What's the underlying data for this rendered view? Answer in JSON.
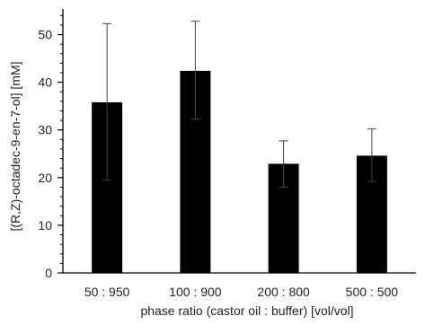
{
  "chart_data": {
    "type": "bar",
    "categories": [
      "50 : 950",
      "100 : 900",
      "200 : 800",
      "500 : 500"
    ],
    "values": [
      35.8,
      42.4,
      22.9,
      24.6
    ],
    "error_upper": [
      52.3,
      52.8,
      27.7,
      30.2
    ],
    "error_lower": [
      19.5,
      32.3,
      18.0,
      19.2
    ],
    "xlabel": "phase ratio (castor oil : buffer) [vol/vol]",
    "ylabel": "[(R,Z)-octadec-9-en-7-ol] [mM]",
    "ylim": [
      0,
      55
    ],
    "yticks": [
      0,
      10,
      20,
      30,
      40,
      50
    ],
    "bar_color": "#000000",
    "grid": false
  }
}
